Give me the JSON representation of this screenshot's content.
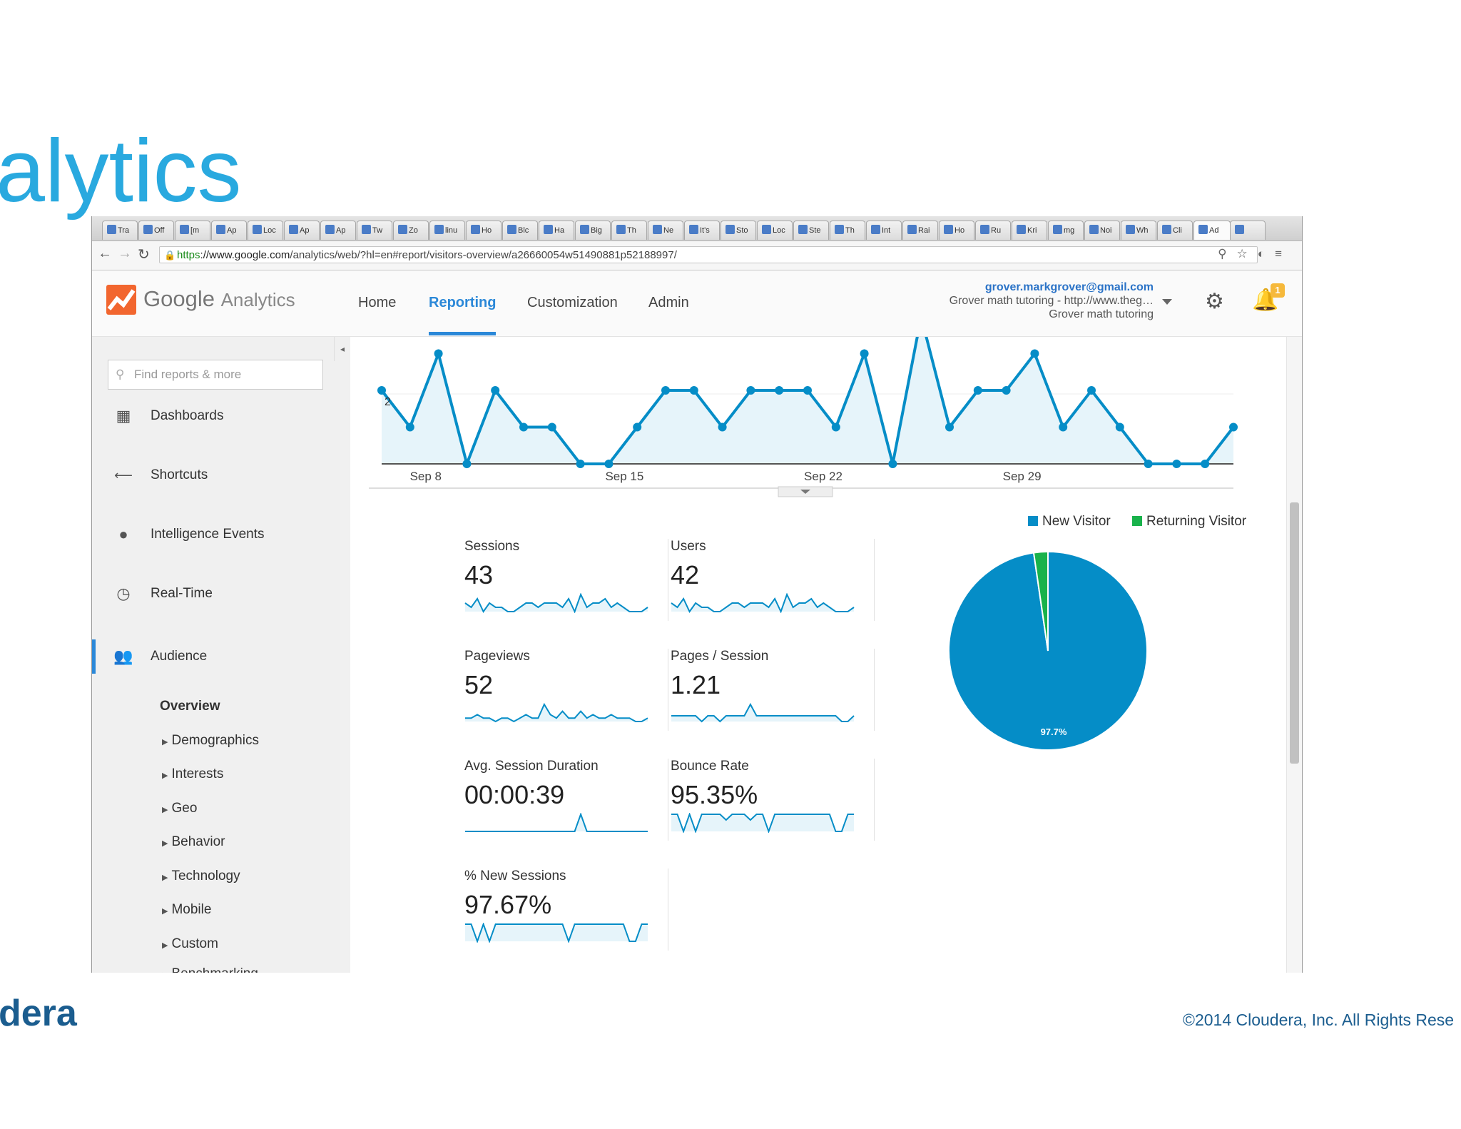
{
  "slide": {
    "title": "alytics",
    "brand": "dera",
    "copyright": "©2014 Cloudera, Inc. All Rights Rese"
  },
  "browser": {
    "tabs": [
      "Tra",
      "Off",
      "[m",
      "Ap",
      "Loc",
      "Ap",
      "Ap",
      "Tw",
      "Zo",
      "linu",
      "Ho",
      "Blc",
      "Ha",
      "Big",
      "Th",
      "Ne",
      "It's",
      "Sto",
      "Loc",
      "Ste",
      "Th",
      "Int",
      "Rai",
      "Ho",
      "Ru",
      "Kri",
      "mg",
      "Noi",
      "Wh",
      "Cli",
      "Ad",
      ""
    ],
    "url_scheme": "https",
    "url_host": "://www.google.com",
    "url_path": "/analytics/web/?hl=en#report/visitors-overview/a26660054w51490881p52188997/"
  },
  "header": {
    "brand_google": "Google",
    "brand_analytics": "Analytics",
    "nav": [
      "Home",
      "Reporting",
      "Customization",
      "Admin"
    ],
    "active_nav": "Reporting",
    "account_email": "grover.markgrover@gmail.com",
    "account_property": "Grover math tutoring - http://www.theg…",
    "account_view": "Grover math tutoring",
    "notification_count": "1"
  },
  "sidebar": {
    "search_placeholder": "Find reports & more",
    "items": [
      {
        "label": "Dashboards",
        "icon": "dashboard-grid-icon"
      },
      {
        "label": "Shortcuts",
        "icon": "shortcut-arrow-icon"
      },
      {
        "label": "Intelligence Events",
        "icon": "lightbulb-icon"
      },
      {
        "label": "Real-Time",
        "icon": "clock-icon"
      },
      {
        "label": "Audience",
        "icon": "people-icon"
      }
    ],
    "active_item": "Audience",
    "sub_items": [
      "Overview",
      "Demographics",
      "Interests",
      "Geo",
      "Behavior",
      "Technology",
      "Mobile",
      "Custom",
      "Benchmarking"
    ]
  },
  "chart_data": [
    {
      "type": "line",
      "title": "",
      "x_ticks": [
        "Sep 8",
        "Sep 15",
        "Sep 22",
        "Sep 29"
      ],
      "y_tick_label": "2",
      "values": [
        2,
        1,
        3,
        0,
        2,
        1,
        1,
        0,
        0,
        1,
        2,
        2,
        1,
        2,
        2,
        2,
        1,
        3,
        0,
        4,
        1,
        2,
        2,
        3,
        1,
        2,
        1,
        0,
        0,
        0,
        1
      ],
      "color": "#058dc7",
      "fill": "#e6f4fa"
    },
    {
      "type": "pie",
      "series": [
        {
          "name": "New Visitor",
          "value": 97.7,
          "color": "#058dc7"
        },
        {
          "name": "Returning Visitor",
          "value": 2.3,
          "color": "#19b24b"
        }
      ],
      "slice_label": "97.7%",
      "legend_position": "top"
    }
  ],
  "metrics": [
    {
      "name": "Sessions",
      "value": "43",
      "spark": [
        2,
        1,
        3,
        0,
        2,
        1,
        1,
        0,
        0,
        1,
        2,
        2,
        1,
        2,
        2,
        2,
        1,
        3,
        0,
        4,
        1,
        2,
        2,
        3,
        1,
        2,
        1,
        0,
        0,
        0,
        1
      ]
    },
    {
      "name": "Users",
      "value": "42",
      "spark": [
        2,
        1,
        3,
        0,
        2,
        1,
        1,
        0,
        0,
        1,
        2,
        2,
        1,
        2,
        2,
        2,
        1,
        3,
        0,
        4,
        1,
        2,
        2,
        3,
        1,
        2,
        1,
        0,
        0,
        0,
        1
      ]
    },
    {
      "name": "Pageviews",
      "value": "52",
      "spark": [
        1,
        1,
        2,
        1,
        1,
        0,
        1,
        1,
        0,
        1,
        2,
        1,
        1,
        5,
        2,
        1,
        3,
        1,
        1,
        3,
        1,
        2,
        1,
        1,
        2,
        1,
        1,
        1,
        0,
        0,
        1
      ]
    },
    {
      "name": "Pages / Session",
      "value": "1.21",
      "spark": [
        1,
        1,
        1,
        1,
        1,
        0,
        1,
        1,
        0,
        1,
        1,
        1,
        1,
        3,
        1,
        1,
        1,
        1,
        1,
        1,
        1,
        1,
        1,
        1,
        1,
        1,
        1,
        1,
        0,
        0,
        1
      ]
    },
    {
      "name": "Avg. Session Duration",
      "value": "00:00:39",
      "spark": [
        0,
        0,
        0,
        0,
        0,
        0,
        0,
        0,
        0,
        0,
        0,
        0,
        0,
        0,
        0,
        0,
        0,
        0,
        0,
        3,
        0,
        0,
        0,
        0,
        0,
        0,
        0,
        0,
        0,
        0,
        0
      ]
    },
    {
      "name": "Bounce Rate",
      "value": "95.35%",
      "spark": [
        3,
        3,
        0,
        3,
        0,
        3,
        3,
        3,
        3,
        2,
        3,
        3,
        3,
        2,
        3,
        3,
        0,
        3,
        3,
        3,
        3,
        3,
        3,
        3,
        3,
        3,
        3,
        0,
        0,
        3,
        3
      ]
    },
    {
      "name": "% New Sessions",
      "value": "97.67%",
      "spark": [
        3,
        3,
        0,
        3,
        0,
        3,
        3,
        3,
        3,
        3,
        3,
        3,
        3,
        3,
        3,
        3,
        3,
        0,
        3,
        3,
        3,
        3,
        3,
        3,
        3,
        3,
        3,
        0,
        0,
        3,
        3
      ]
    }
  ]
}
